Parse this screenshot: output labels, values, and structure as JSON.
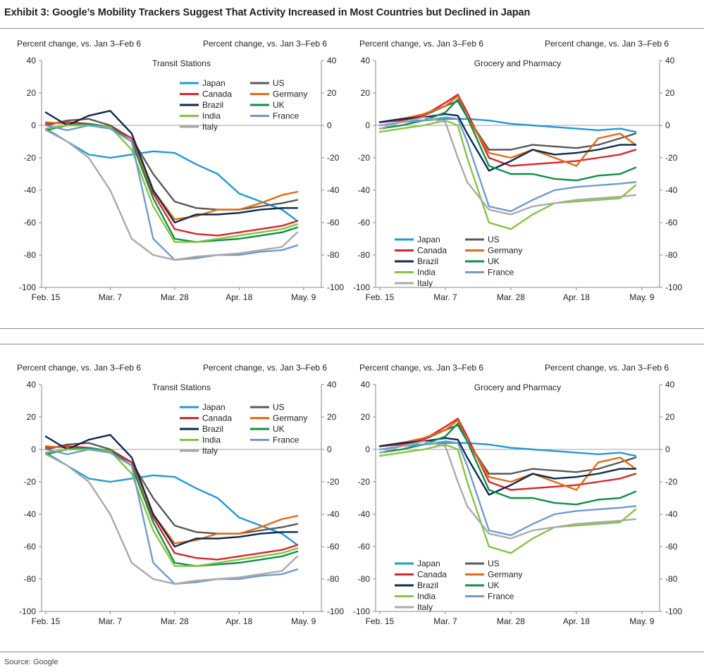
{
  "exhibit_title": "Exhibit 3: Google’s Mobility Trackers Suggest That Activity Increased in Most Countries but Declined in Japan",
  "source": "Source: Google",
  "colors": {
    "Japan": "#1f9ad8",
    "US": "#595959",
    "Canada": "#d9262c",
    "Germany": "#e56c12",
    "Brazil": "#0c2a52",
    "UK": "#0b9146",
    "India": "#86c440",
    "France": "#6f9bd1",
    "Italy": "#aaaaaa"
  },
  "panels": [
    {
      "unit_left": "Percent change, vs. Jan 3–Feb 6",
      "unit_right": "Percent change, vs. Jan 3–Feb 6",
      "chart_data": {
        "type": "line",
        "title": "Transit Stations",
        "x_ticks": [
          "Feb. 15",
          "Mar. 7",
          "Mar. 28",
          "Apr. 18",
          "May. 9"
        ],
        "x": [
          0,
          7,
          14,
          21,
          28,
          35,
          42,
          49,
          56,
          63,
          70,
          77,
          82
        ],
        "ylim": [
          -100,
          40
        ],
        "y_ticks": [
          40,
          20,
          0,
          -20,
          -40,
          -60,
          -80,
          -100
        ],
        "legend_cols": 2,
        "series": [
          {
            "name": "Japan",
            "values": [
              -2,
              -10,
              -18,
              -20,
              -18,
              -16,
              -17,
              -24,
              -30,
              -42,
              -47,
              -52,
              -59
            ]
          },
          {
            "name": "US",
            "values": [
              0,
              3,
              4,
              0,
              -8,
              -30,
              -47,
              -51,
              -52,
              -52,
              -50,
              -48,
              -46
            ]
          },
          {
            "name": "Canada",
            "values": [
              1,
              2,
              1,
              -1,
              -8,
              -42,
              -64,
              -67,
              -68,
              -66,
              -64,
              -62,
              -59
            ]
          },
          {
            "name": "Germany",
            "values": [
              2,
              1,
              0,
              -2,
              -10,
              -40,
              -58,
              -56,
              -52,
              -52,
              -48,
              -43,
              -41
            ]
          },
          {
            "name": "Brazil",
            "values": [
              8,
              0,
              6,
              9,
              -5,
              -40,
              -60,
              -55,
              -55,
              -54,
              -52,
              -51,
              -51
            ]
          },
          {
            "name": "UK",
            "values": [
              -3,
              0,
              1,
              -1,
              -10,
              -45,
              -70,
              -72,
              -71,
              -70,
              -68,
              -66,
              -63
            ]
          },
          {
            "name": "India",
            "values": [
              -2,
              0,
              0,
              -1,
              -15,
              -50,
              -72,
              -72,
              -70,
              -68,
              -66,
              -64,
              -61
            ]
          },
          {
            "name": "France",
            "values": [
              0,
              -3,
              0,
              -2,
              -10,
              -70,
              -83,
              -82,
              -80,
              -80,
              -78,
              -77,
              -74
            ]
          },
          {
            "name": "Italy",
            "values": [
              -3,
              -10,
              -20,
              -40,
              -70,
              -80,
              -83,
              -81,
              -80,
              -79,
              -77,
              -75,
              -66
            ]
          }
        ]
      }
    },
    {
      "unit_left": "Percent change, vs. Jan 3–Feb 6",
      "unit_right": "Percent change, vs. Jan 3–Feb 6",
      "chart_data": {
        "type": "line",
        "title": "Grocery and Pharmacy",
        "x_ticks": [
          "Feb. 15",
          "Mar. 7",
          "Mar. 28",
          "Apr. 18",
          "May. 9"
        ],
        "x": [
          0,
          7,
          14,
          21,
          25,
          28,
          35,
          42,
          49,
          56,
          63,
          70,
          77,
          82
        ],
        "ylim": [
          -100,
          40
        ],
        "y_ticks": [
          40,
          20,
          0,
          -20,
          -40,
          -60,
          -80,
          -100
        ],
        "legend_cols": 2,
        "series": [
          {
            "name": "Japan",
            "values": [
              2,
              3,
              3,
              4,
              4,
              4,
              3,
              1,
              0,
              -1,
              -2,
              -3,
              -2,
              -4
            ]
          },
          {
            "name": "US",
            "values": [
              2,
              4,
              6,
              12,
              15,
              5,
              -15,
              -15,
              -12,
              -13,
              -14,
              -12,
              -8,
              -5
            ]
          },
          {
            "name": "Canada",
            "values": [
              2,
              3,
              6,
              14,
              19,
              8,
              -20,
              -25,
              -24,
              -23,
              -22,
              -20,
              -18,
              -15
            ]
          },
          {
            "name": "Germany",
            "values": [
              2,
              4,
              7,
              12,
              18,
              5,
              -17,
              -20,
              -15,
              -20,
              -25,
              -8,
              -5,
              -12
            ]
          },
          {
            "name": "Brazil",
            "values": [
              2,
              4,
              5,
              7,
              6,
              -5,
              -28,
              -22,
              -15,
              -18,
              -17,
              -15,
              -12,
              -12
            ]
          },
          {
            "name": "UK",
            "values": [
              -2,
              0,
              3,
              8,
              16,
              5,
              -25,
              -30,
              -30,
              -33,
              -34,
              -31,
              -30,
              -26
            ]
          },
          {
            "name": "India",
            "values": [
              -4,
              -2,
              0,
              3,
              0,
              -20,
              -60,
              -64,
              -55,
              -48,
              -47,
              -46,
              -45,
              -37
            ]
          },
          {
            "name": "France",
            "values": [
              0,
              2,
              3,
              5,
              4,
              -10,
              -50,
              -53,
              -46,
              -40,
              -38,
              -37,
              -36,
              -35
            ]
          },
          {
            "name": "Italy",
            "values": [
              -2,
              2,
              5,
              2,
              -20,
              -35,
              -52,
              -55,
              -50,
              -48,
              -46,
              -45,
              -44,
              -43
            ]
          }
        ]
      }
    },
    {
      "unit_left": "Percent change, vs. Jan 3–Feb 6",
      "unit_right": "Percent change, vs. Jan 3–Feb 6",
      "chart_data": {
        "type": "line",
        "title": "Transit Stations",
        "x_ticks": [
          "Feb. 15",
          "Mar. 7",
          "Mar. 28",
          "Apr. 18",
          "May. 9"
        ],
        "x": [
          0,
          7,
          14,
          21,
          28,
          35,
          42,
          49,
          56,
          63,
          70,
          77,
          82
        ],
        "ylim": [
          -100,
          40
        ],
        "y_ticks": [
          40,
          20,
          0,
          -20,
          -40,
          -60,
          -80,
          -100
        ],
        "legend_cols": 2,
        "series": [
          {
            "name": "Japan",
            "values": [
              -2,
              -10,
              -18,
              -20,
              -18,
              -16,
              -17,
              -24,
              -30,
              -42,
              -47,
              -52,
              -59
            ]
          },
          {
            "name": "US",
            "values": [
              0,
              3,
              4,
              0,
              -8,
              -30,
              -47,
              -51,
              -52,
              -52,
              -50,
              -48,
              -46
            ]
          },
          {
            "name": "Canada",
            "values": [
              1,
              2,
              1,
              -1,
              -8,
              -42,
              -64,
              -67,
              -68,
              -66,
              -64,
              -62,
              -59
            ]
          },
          {
            "name": "Germany",
            "values": [
              2,
              1,
              0,
              -2,
              -10,
              -40,
              -58,
              -56,
              -52,
              -52,
              -48,
              -43,
              -41
            ]
          },
          {
            "name": "Brazil",
            "values": [
              8,
              0,
              6,
              9,
              -5,
              -40,
              -60,
              -55,
              -55,
              -54,
              -52,
              -51,
              -51
            ]
          },
          {
            "name": "UK",
            "values": [
              -3,
              0,
              1,
              -1,
              -10,
              -45,
              -70,
              -72,
              -71,
              -70,
              -68,
              -66,
              -63
            ]
          },
          {
            "name": "India",
            "values": [
              -2,
              0,
              0,
              -1,
              -15,
              -50,
              -72,
              -72,
              -70,
              -68,
              -66,
              -64,
              -61
            ]
          },
          {
            "name": "France",
            "values": [
              0,
              -3,
              0,
              -2,
              -10,
              -70,
              -83,
              -82,
              -80,
              -80,
              -78,
              -77,
              -74
            ]
          },
          {
            "name": "Italy",
            "values": [
              -3,
              -10,
              -20,
              -40,
              -70,
              -80,
              -83,
              -81,
              -80,
              -79,
              -77,
              -75,
              -66
            ]
          }
        ]
      }
    },
    {
      "unit_left": "Percent change, vs. Jan 3–Feb 6",
      "unit_right": "Percent change, vs. Jan 3–Feb 6",
      "chart_data": {
        "type": "line",
        "title": "Grocery and Pharmacy",
        "x_ticks": [
          "Feb. 15",
          "Mar. 7",
          "Mar. 28",
          "Apr. 18",
          "May. 9"
        ],
        "x": [
          0,
          7,
          14,
          21,
          25,
          28,
          35,
          42,
          49,
          56,
          63,
          70,
          77,
          82
        ],
        "ylim": [
          -100,
          40
        ],
        "y_ticks": [
          40,
          20,
          0,
          -20,
          -40,
          -60,
          -80,
          -100
        ],
        "legend_cols": 2,
        "series": [
          {
            "name": "Japan",
            "values": [
              2,
              3,
              3,
              4,
              4,
              4,
              3,
              1,
              0,
              -1,
              -2,
              -3,
              -2,
              -4
            ]
          },
          {
            "name": "US",
            "values": [
              2,
              4,
              6,
              12,
              15,
              5,
              -15,
              -15,
              -12,
              -13,
              -14,
              -12,
              -8,
              -5
            ]
          },
          {
            "name": "Canada",
            "values": [
              2,
              3,
              6,
              14,
              19,
              8,
              -20,
              -25,
              -24,
              -23,
              -22,
              -20,
              -18,
              -15
            ]
          },
          {
            "name": "Germany",
            "values": [
              2,
              4,
              7,
              12,
              18,
              5,
              -17,
              -20,
              -15,
              -20,
              -25,
              -8,
              -5,
              -12
            ]
          },
          {
            "name": "Brazil",
            "values": [
              2,
              4,
              5,
              7,
              6,
              -5,
              -28,
              -22,
              -15,
              -18,
              -17,
              -15,
              -12,
              -12
            ]
          },
          {
            "name": "UK",
            "values": [
              -2,
              0,
              3,
              8,
              16,
              5,
              -25,
              -30,
              -30,
              -33,
              -34,
              -31,
              -30,
              -26
            ]
          },
          {
            "name": "India",
            "values": [
              -4,
              -2,
              0,
              3,
              0,
              -20,
              -60,
              -64,
              -55,
              -48,
              -47,
              -46,
              -45,
              -37
            ]
          },
          {
            "name": "France",
            "values": [
              0,
              2,
              3,
              5,
              4,
              -10,
              -50,
              -53,
              -46,
              -40,
              -38,
              -37,
              -36,
              -35
            ]
          },
          {
            "name": "Italy",
            "values": [
              -2,
              2,
              5,
              2,
              -20,
              -35,
              -52,
              -55,
              -50,
              -48,
              -46,
              -45,
              -44,
              -43
            ]
          }
        ]
      }
    }
  ]
}
